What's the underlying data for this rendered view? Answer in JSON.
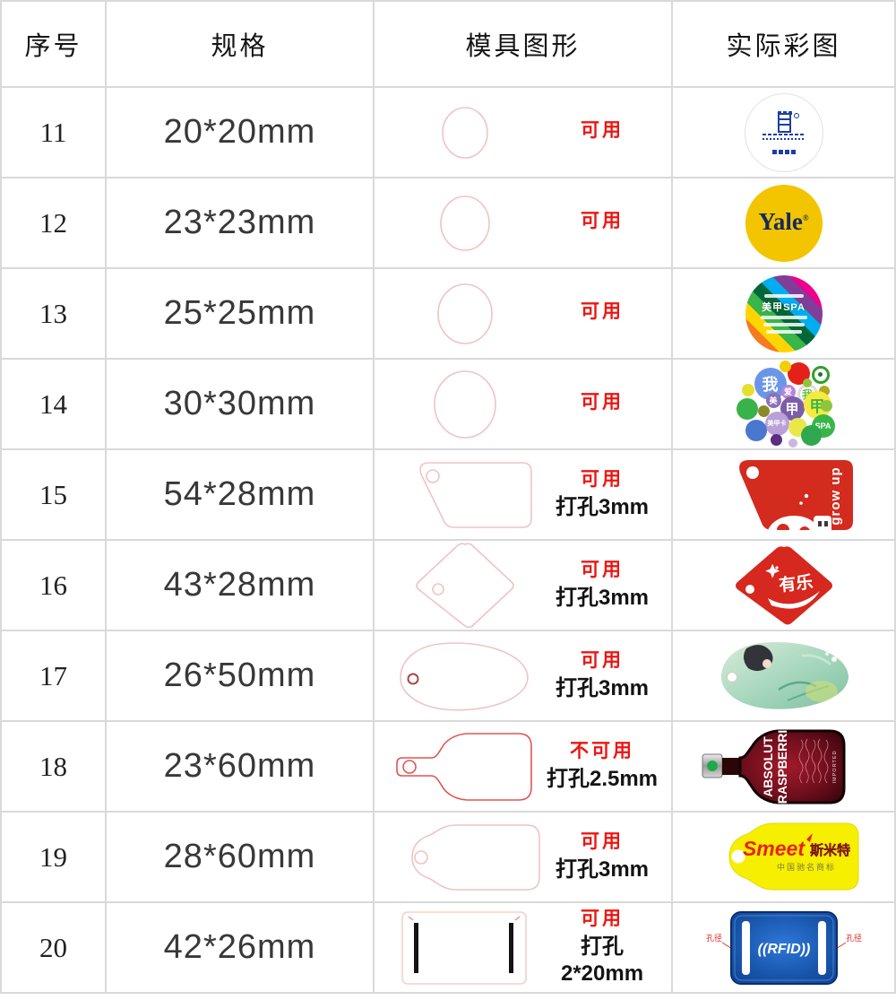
{
  "table": {
    "columns": [
      "序号",
      "规格",
      "模具图形",
      "实际彩图"
    ],
    "rows": [
      {
        "no": "11",
        "spec": "20*20mm",
        "usable": "可用",
        "hole": "",
        "shape": "circle",
        "image": {
          "kind": "white-circle-blue-emblem"
        }
      },
      {
        "no": "12",
        "spec": "23*23mm",
        "usable": "可用",
        "hole": "",
        "shape": "circle",
        "image": {
          "kind": "yale-logo",
          "brand": "Yale",
          "reg": "®"
        }
      },
      {
        "no": "13",
        "spec": "25*25mm",
        "usable": "可用",
        "hole": "",
        "shape": "circle",
        "image": {
          "kind": "rainbow-stripe-circle",
          "line": "美甲SPA",
          "stripes": [
            "#e31e24",
            "#f47b20",
            "#ffd500",
            "#39b54a",
            "#006838",
            "#00aeef",
            "#7f3f98",
            "#ec008c",
            "#f49ac1"
          ]
        }
      },
      {
        "no": "14",
        "spec": "30*30mm",
        "usable": "可用",
        "hole": "",
        "shape": "circle",
        "image": {
          "kind": "bubble-cluster-logo",
          "bubbles": [
            {
              "x": 20,
              "y": 8,
              "d": 36,
              "c": "#6b96e8",
              "t": "我",
              "tc": "#ffffff",
              "ts": 18
            },
            {
              "x": 57,
              "y": 2,
              "d": 25,
              "c": "#e32119"
            },
            {
              "x": 84,
              "y": 6,
              "d": 20,
              "c": "#ffffff",
              "ring": "#33a02c",
              "dot": "#1b7a1f"
            },
            {
              "x": 48,
              "y": 0,
              "d": 13,
              "c": "#f2d000"
            },
            {
              "x": 6,
              "y": 26,
              "d": 14,
              "c": "#e6df2e"
            },
            {
              "x": 68,
              "y": 26,
              "d": 23,
              "c": "#ffffff",
              "ring": "#dddddd",
              "t": "我",
              "tc": "#6abf3e",
              "ts": 12
            },
            {
              "x": 50,
              "y": 27,
              "d": 16,
              "c": "#b884d4",
              "t": "爱",
              "tc": "#ffffff",
              "ts": 9
            },
            {
              "x": 92,
              "y": 28,
              "d": 12,
              "c": "#b0a820"
            },
            {
              "x": 33,
              "y": 36,
              "d": 17,
              "c": "#8e6fb8",
              "t": "美",
              "tc": "#ffffff",
              "ts": 9
            },
            {
              "x": 49,
              "y": 40,
              "d": 27,
              "c": "#7b5ea7",
              "t": "甲",
              "tc": "#ffffff",
              "ts": 15
            },
            {
              "x": 75,
              "y": 34,
              "d": 31,
              "c": "#f6e93f",
              "t": "甲",
              "tc": "#39b54a",
              "ts": 17
            },
            {
              "x": 0,
              "y": 42,
              "d": 24,
              "c": "#37b34a"
            },
            {
              "x": 24,
              "y": 50,
              "d": 13,
              "c": "#8a8a2a"
            },
            {
              "x": 84,
              "y": 60,
              "d": 26,
              "c": "#39b54a",
              "t": "SPA",
              "tc": "#ffffff",
              "ts": 9
            },
            {
              "x": 32,
              "y": 57,
              "d": 27,
              "c": "#b9a0d8",
              "t": "美甲卡",
              "tc": "#ffffff",
              "ts": 7
            },
            {
              "x": 10,
              "y": 66,
              "d": 24,
              "c": "#4a78d0"
            },
            {
              "x": 58,
              "y": 64,
              "d": 21,
              "c": "#e8e84a"
            },
            {
              "x": 72,
              "y": 72,
              "d": 23,
              "c": "#2fa84f"
            },
            {
              "x": 38,
              "y": 82,
              "d": 13,
              "c": "#5c2d82"
            },
            {
              "x": 58,
              "y": 87,
              "d": 10,
              "c": "#c8b8e0"
            },
            {
              "x": 74,
              "y": 20,
              "d": 10,
              "c": "#8cc63f"
            },
            {
              "x": 94,
              "y": 44,
              "d": 13,
              "c": "#8cc63f"
            }
          ]
        }
      },
      {
        "no": "15",
        "spec": "54*28mm",
        "usable": "可用",
        "hole": "打孔3mm",
        "shape": "trapezoid-tag",
        "image": {
          "kind": "red-trapezoid-tag",
          "text": "grow up"
        }
      },
      {
        "no": "16",
        "spec": "43*28mm",
        "usable": "可用",
        "hole": "打孔3mm",
        "shape": "diamond-tag",
        "image": {
          "kind": "red-diamond-tag",
          "text": "有乐"
        }
      },
      {
        "no": "17",
        "spec": "26*50mm",
        "usable": "可用",
        "hole": "打孔3mm",
        "shape": "teardrop-tag",
        "image": {
          "kind": "green-art-teardrop-card"
        }
      },
      {
        "no": "18",
        "spec": "23*60mm",
        "usable": "不可用",
        "hole": "打孔2.5mm",
        "shape": "bottle",
        "image": {
          "kind": "absolut-bottle",
          "line1": "ABSOLUT",
          "line2": "RASPBERRI",
          "side": "IMPORTED"
        }
      },
      {
        "no": "19",
        "spec": "28*60mm",
        "usable": "可用",
        "hole": "打孔3mm",
        "shape": "price-tag",
        "image": {
          "kind": "yellow-price-tag",
          "brand": "Smeet",
          "brand_cn": "斯米特",
          "subtitle": "中国驰名商标"
        }
      },
      {
        "no": "20",
        "spec": "42*26mm",
        "usable": "可用",
        "hole": "打孔2*20mm",
        "shape": "slot-rectangle",
        "image": {
          "kind": "rfid-tag",
          "text": "((RFID))",
          "hole_label_left": "孔径",
          "hole_label_right": "孔径"
        }
      }
    ]
  },
  "colors": {
    "status_red": "#ee1511",
    "mold_outline_pink": "#f0c3c3",
    "bottle_outline_red": "#e05555",
    "grid_line": "#d9d9d9",
    "yale_yellow": "#f2c500",
    "yale_navy": "#16295e",
    "tag_red": "#d32b1e",
    "tag_yellow": "#f7ef00",
    "rfid_blue": "#1653a8",
    "emblem_blue": "#1e3f9e"
  }
}
